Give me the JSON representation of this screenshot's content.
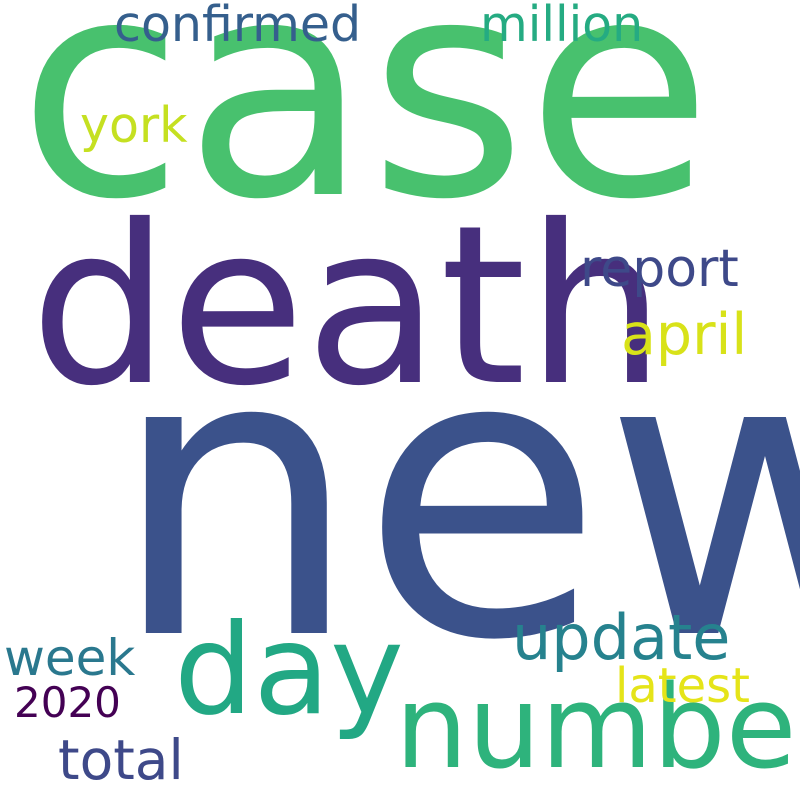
{
  "words": [
    {
      "key": "case",
      "text": "case",
      "color": "#48c16e"
    },
    {
      "key": "death",
      "text": "death",
      "color": "#472f7d"
    },
    {
      "key": "new",
      "text": "new",
      "color": "#3b528b"
    },
    {
      "key": "confirmed",
      "text": "confirmed",
      "color": "#355f8d"
    },
    {
      "key": "million",
      "text": "million",
      "color": "#25ab82"
    },
    {
      "key": "york",
      "text": "york",
      "color": "#c5e021"
    },
    {
      "key": "report",
      "text": "report",
      "color": "#3e4989"
    },
    {
      "key": "april",
      "text": "april",
      "color": "#d8e219"
    },
    {
      "key": "day",
      "text": "day",
      "color": "#22a884"
    },
    {
      "key": "number",
      "text": "number",
      "color": "#2eb37c"
    },
    {
      "key": "update",
      "text": "update",
      "color": "#26828e"
    },
    {
      "key": "latest",
      "text": "latest",
      "color": "#e5e419"
    },
    {
      "key": "week",
      "text": "week",
      "color": "#2a788e"
    },
    {
      "key": "2020",
      "text": "2020",
      "color": "#440154"
    },
    {
      "key": "total",
      "text": "total",
      "color": "#3e4989"
    }
  ]
}
